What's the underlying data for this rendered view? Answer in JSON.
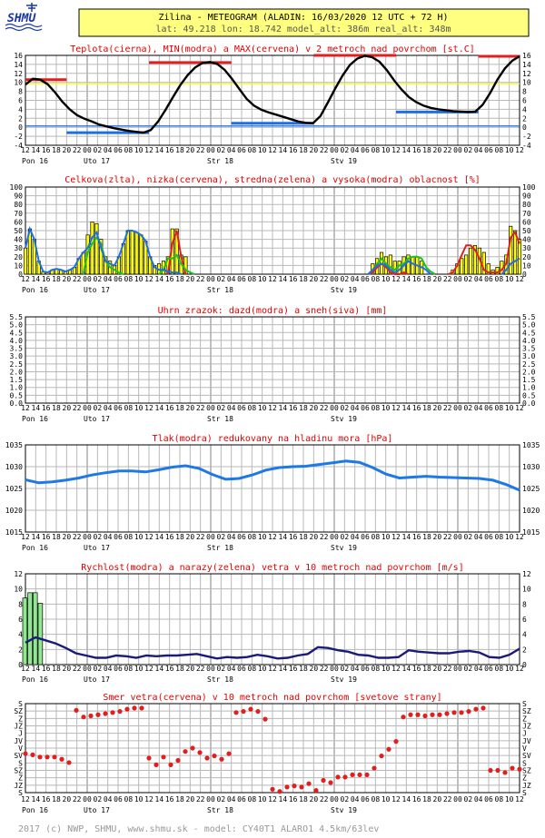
{
  "header": {
    "logo_text": "SHMU",
    "title": "Zilina - METEOGRAM (ALADIN: 16/03/2020 12 UTC + 72 H)",
    "subtitle": "lat: 49.218  lon: 18.742  model_alt: 386m  real_alt: 348m"
  },
  "footer": "2017 (c) NWP, SHMU, www.shmu.sk - model: CY40T1 ALARO1 4.5km/63lev",
  "colors": {
    "header_bg": "#ffff80",
    "title": "#e00000",
    "grid": "#b8b8b8",
    "black": "#000000",
    "blue": "#1e6ee6",
    "red": "#e02020",
    "green": "#20c020",
    "yellow": "#ffff00",
    "navy": "#1a1a7a",
    "gust": "#90e890",
    "pres": "#1e78e6"
  },
  "time_axis": {
    "hour_labels": [
      "12",
      "14",
      "16",
      "18",
      "20",
      "22",
      "00",
      "02",
      "04",
      "06",
      "08",
      "10",
      "12",
      "14",
      "16",
      "18",
      "20",
      "22",
      "00",
      "02",
      "04",
      "06",
      "08",
      "10",
      "12",
      "14",
      "16",
      "18",
      "20",
      "22",
      "00",
      "02",
      "04",
      "06",
      "08",
      "10",
      "12",
      "14",
      "16",
      "18",
      "20",
      "22",
      "00",
      "02",
      "04",
      "06",
      "08",
      "10",
      "12"
    ],
    "day_labels": [
      {
        "label": "Pon 16",
        "index": 0
      },
      {
        "label": "Uto 17",
        "index": 6
      },
      {
        "label": "Str 18",
        "index": 18
      },
      {
        "label": "Stv 19",
        "index": 30
      }
    ]
  },
  "chart_data": [
    {
      "id": "temperature",
      "type": "line",
      "title": "Teplota(cierna), MIN(modra) a MAX(cervena) v 2 metroch nad povrchom [st.C]",
      "ylim": [
        -4,
        16
      ],
      "yticks": [
        "-4",
        "-2",
        "0",
        "2",
        "4",
        "6",
        "8",
        "10",
        "12",
        "14",
        "16"
      ],
      "series": [
        {
          "name": "teplota",
          "color": "black",
          "values": [
            9.5,
            10.8,
            10.6,
            9.6,
            7.8,
            5.7,
            4.0,
            2.7,
            1.9,
            1.3,
            0.6,
            0.2,
            -0.2,
            -0.5,
            -0.8,
            -1.0,
            -1.2,
            -0.6,
            1.3,
            3.9,
            6.7,
            9.4,
            11.6,
            13.3,
            14.3,
            14.5,
            14.1,
            12.8,
            10.8,
            8.5,
            6.3,
            4.8,
            3.9,
            3.3,
            2.8,
            2.3,
            1.8,
            1.3,
            1.0,
            0.9,
            2.5,
            5.5,
            8.6,
            11.5,
            13.9,
            15.3,
            15.9,
            15.6,
            14.6,
            12.7,
            10.4,
            8.4,
            6.7,
            5.6,
            4.8,
            4.3,
            4.0,
            3.8,
            3.6,
            3.5,
            3.4,
            3.5,
            5.0,
            7.6,
            10.6,
            13.1,
            14.8,
            15.8
          ]
        }
      ],
      "max_segments": [
        {
          "from": 0,
          "to": 4,
          "value": 10.6
        },
        {
          "from": 12,
          "to": 20,
          "value": 14.4
        },
        {
          "from": 28,
          "to": 36,
          "value": 16.0
        },
        {
          "from": 44,
          "to": 48,
          "value": 15.8
        }
      ],
      "min_segments": [
        {
          "from": 4,
          "to": 12,
          "value": -1.2
        },
        {
          "from": 20,
          "to": 28,
          "value": 0.9
        },
        {
          "from": 36,
          "to": 44,
          "value": 3.4
        }
      ],
      "hlines": [
        {
          "value": 0.3,
          "color": "blue"
        },
        {
          "value": 9.7,
          "color": "yellow"
        }
      ]
    },
    {
      "id": "cloud",
      "type": "bar",
      "title": "Celkova(zlta), nizka(cervena), stredna(zelena) a vysoka(modra) oblacnost [%]",
      "ylim": [
        0,
        100
      ],
      "yticks": [
        "0",
        "10",
        "20",
        "30",
        "40",
        "50",
        "60",
        "70",
        "80",
        "90",
        "100"
      ],
      "series": [
        {
          "name": "celkova",
          "color": "yellow",
          "values": [
            30,
            52,
            40,
            15,
            3,
            2,
            5,
            6,
            5,
            3,
            5,
            8,
            18,
            25,
            45,
            60,
            58,
            40,
            20,
            15,
            10,
            20,
            35,
            50,
            50,
            48,
            45,
            38,
            20,
            10,
            12,
            15,
            20,
            52,
            52,
            22,
            20,
            0,
            0,
            0,
            0,
            0,
            0,
            0,
            0,
            0,
            0,
            0,
            0,
            0,
            0,
            0,
            0,
            0,
            0,
            0,
            0,
            0,
            0,
            0,
            0,
            0,
            0,
            0,
            0,
            0,
            0,
            0,
            0,
            0,
            0,
            0,
            0,
            0,
            0,
            0,
            0,
            0,
            12,
            18,
            25,
            20,
            22,
            15,
            15,
            20,
            22,
            20,
            20,
            15,
            0,
            0,
            0,
            0,
            0,
            0,
            5,
            12,
            18,
            22,
            30,
            33,
            30,
            25,
            12,
            5,
            8,
            15,
            22,
            55,
            50,
            40
          ]
        },
        {
          "name": "nizka",
          "color": "red",
          "values": [
            0,
            0,
            0,
            0,
            0,
            0,
            0,
            0,
            0,
            0,
            0,
            0,
            0,
            0,
            0,
            0,
            0,
            0,
            0,
            0,
            0,
            0,
            0,
            0,
            0,
            0,
            0,
            0,
            0,
            0,
            0,
            0,
            0,
            35,
            50,
            20,
            0,
            0,
            0,
            0,
            0,
            0,
            0,
            0,
            0,
            0,
            0,
            0,
            0,
            0,
            0,
            0,
            0,
            0,
            0,
            0,
            0,
            0,
            0,
            0,
            0,
            0,
            0,
            0,
            0,
            0,
            0,
            0,
            0,
            0,
            0,
            0,
            0,
            0,
            0,
            0,
            0,
            0,
            2,
            8,
            12,
            8,
            2,
            0,
            0,
            2,
            0,
            0,
            0,
            0,
            0,
            0,
            0,
            0,
            0,
            0,
            2,
            10,
            22,
            33,
            33,
            28,
            18,
            5,
            2,
            2,
            2,
            5,
            12,
            42,
            48,
            35
          ]
        },
        {
          "name": "stredna",
          "color": "green",
          "values": [
            0,
            0,
            0,
            0,
            0,
            0,
            0,
            0,
            0,
            0,
            0,
            0,
            0,
            0,
            25,
            35,
            42,
            35,
            15,
            8,
            5,
            2,
            0,
            0,
            0,
            0,
            0,
            0,
            0,
            0,
            0,
            5,
            18,
            18,
            22,
            12,
            5,
            2,
            0,
            0,
            0,
            0,
            0,
            0,
            0,
            0,
            0,
            0,
            0,
            0,
            0,
            0,
            0,
            0,
            0,
            0,
            0,
            0,
            0,
            0,
            0,
            0,
            0,
            0,
            0,
            0,
            0,
            0,
            0,
            0,
            0,
            0,
            0,
            0,
            0,
            0,
            0,
            0,
            5,
            12,
            18,
            12,
            8,
            5,
            10,
            12,
            18,
            20,
            20,
            18,
            8,
            3,
            0,
            0,
            0,
            0,
            0,
            0,
            0,
            0,
            0,
            0,
            0,
            0,
            0,
            0,
            0,
            0,
            0,
            0,
            0,
            0
          ]
        },
        {
          "name": "vysoka",
          "color": "blue",
          "values": [
            30,
            52,
            40,
            15,
            3,
            2,
            5,
            6,
            5,
            3,
            5,
            8,
            18,
            25,
            30,
            42,
            48,
            30,
            15,
            12,
            10,
            20,
            35,
            50,
            50,
            48,
            45,
            38,
            20,
            8,
            5,
            5,
            3,
            2,
            2,
            0,
            0,
            0,
            0,
            0,
            0,
            0,
            0,
            0,
            0,
            0,
            0,
            0,
            0,
            0,
            0,
            0,
            0,
            0,
            0,
            0,
            0,
            0,
            0,
            0,
            0,
            0,
            0,
            0,
            0,
            0,
            0,
            0,
            0,
            0,
            0,
            0,
            0,
            0,
            0,
            0,
            0,
            0,
            5,
            10,
            12,
            10,
            5,
            2,
            5,
            10,
            15,
            12,
            10,
            8,
            5,
            0,
            0,
            0,
            0,
            0,
            0,
            0,
            0,
            0,
            0,
            0,
            0,
            0,
            0,
            0,
            0,
            0,
            5,
            12,
            15,
            18
          ]
        }
      ]
    },
    {
      "id": "precip",
      "type": "bar",
      "title": "Uhrn zrazok: dazd(modra) a sneh(siva) [mm]",
      "ylim": [
        0,
        5.5
      ],
      "yticks": [
        "0.0",
        "0.5",
        "1.0",
        "1.5",
        "2.0",
        "2.5",
        "3.0",
        "3.5",
        "4.0",
        "4.5",
        "5.0",
        "5.5"
      ],
      "series": [
        {
          "name": "dazd",
          "color": "blue",
          "values": []
        },
        {
          "name": "sneh",
          "color": "gray",
          "values": []
        }
      ]
    },
    {
      "id": "pressure",
      "type": "line",
      "title": "Tlak(modra) redukovany na hladinu mora [hPa]",
      "ylim": [
        1015,
        1035
      ],
      "yticks": [
        "1015",
        "1020",
        "1025",
        "1030",
        "1035"
      ],
      "series": [
        {
          "name": "tlak",
          "color": "blue",
          "values": [
            1027.0,
            1026.3,
            1026.5,
            1026.9,
            1027.4,
            1028.1,
            1028.6,
            1029.0,
            1029.0,
            1028.8,
            1029.3,
            1029.9,
            1030.2,
            1029.6,
            1028.2,
            1027.1,
            1027.3,
            1028.1,
            1029.2,
            1029.8,
            1030.0,
            1030.1,
            1030.5,
            1030.9,
            1031.3,
            1031.0,
            1029.8,
            1028.3,
            1027.4,
            1027.6,
            1027.8,
            1027.6,
            1027.5,
            1027.4,
            1027.3,
            1026.9,
            1025.9,
            1024.6
          ]
        }
      ]
    },
    {
      "id": "wind",
      "type": "line",
      "title": "Rychlost(modra) a narazy(zelena) vetra v 10 metroch nad povrchom [m/s]",
      "ylim": [
        0,
        12
      ],
      "yticks": [
        "0",
        "2",
        "4",
        "6",
        "8",
        "10",
        "12"
      ],
      "series": [
        {
          "name": "rychlost",
          "color": "navy",
          "values": [
            2.9,
            3.6,
            3.2,
            2.8,
            2.2,
            1.5,
            1.2,
            0.9,
            0.9,
            1.2,
            1.1,
            0.9,
            1.2,
            1.1,
            1.2,
            1.2,
            1.3,
            1.4,
            1.1,
            0.8,
            1.0,
            0.9,
            1.0,
            1.3,
            1.1,
            0.8,
            0.9,
            1.2,
            1.4,
            2.3,
            2.2,
            1.9,
            1.7,
            1.3,
            1.2,
            0.9,
            0.9,
            1.0,
            1.9,
            1.7,
            1.6,
            1.5,
            1.5,
            1.7,
            1.8,
            1.6,
            1.0,
            0.9,
            1.3,
            2.1
          ]
        },
        {
          "name": "narazy",
          "color": "green",
          "values": [
            8.8,
            9.5,
            9.5,
            8.1
          ]
        }
      ]
    },
    {
      "id": "direction",
      "type": "scatter",
      "title": "Smer vetra(cervena) v 10 metroch nad povrchom [svetove strany]",
      "ylim": [
        0,
        8
      ],
      "yticks": [
        "S",
        "JZ",
        "Z",
        "SZ",
        "S",
        "SV",
        "V",
        "JV",
        "J",
        "JZ",
        "Z",
        "SZ",
        "S"
      ],
      "ylabel_note": "categories cover 0..360 degrees stacked twice",
      "series": [
        {
          "name": "smer",
          "color": "red",
          "values": [
            3.5,
            3.4,
            3.2,
            3.2,
            3.2,
            3.0,
            2.7,
            7.4,
            6.8,
            6.9,
            7.0,
            7.1,
            7.2,
            7.3,
            7.5,
            7.6,
            7.6,
            3.1,
            2.5,
            3.2,
            2.5,
            2.9,
            3.7,
            4.0,
            3.6,
            3.1,
            3.3,
            3.0,
            3.5,
            7.2,
            7.3,
            7.5,
            7.3,
            6.6,
            0.3,
            0.1,
            0.5,
            0.6,
            0.5,
            0.8,
            0.2,
            1.1,
            0.9,
            1.4,
            1.4,
            1.6,
            1.6,
            1.6,
            2.2,
            3.3,
            3.9,
            4.6,
            6.8,
            7.0,
            7.0,
            6.9,
            7.0,
            7.0,
            7.1,
            7.2,
            7.2,
            7.3,
            7.5,
            7.6,
            2.0,
            2.0,
            1.8,
            2.2,
            2.1
          ]
        }
      ]
    }
  ]
}
